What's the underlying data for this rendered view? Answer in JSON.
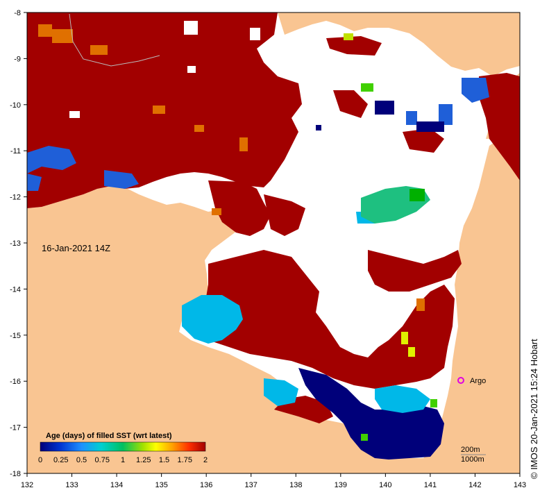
{
  "map": {
    "date_label": "16-Jan-2021 14Z",
    "credit": "©  IMOS 20-Jan-2021 15:24 Hobart",
    "lon_ticks": [
      "132",
      "133",
      "134",
      "135",
      "136",
      "137",
      "138",
      "139",
      "140",
      "141",
      "142",
      "143"
    ],
    "lat_ticks": [
      "-8",
      "-9",
      "-10",
      "-11",
      "-12",
      "-13",
      "-14",
      "-15",
      "-16",
      "-17",
      "-18"
    ],
    "argo_label": "Argo",
    "contours": [
      "200m",
      "1000m"
    ],
    "legend": {
      "title": "Age (days) of filled SST (wrt latest)",
      "ticks": [
        "0",
        "0.25",
        "0.5",
        "0.75",
        "1",
        "1.25",
        "1.5",
        "1.75",
        "2"
      ]
    },
    "colors": {
      "land": "#f9c592",
      "no_data": "#ffffff",
      "age_2": "#a20000",
      "age_0": "#000080",
      "argo": "#e000e0"
    }
  }
}
